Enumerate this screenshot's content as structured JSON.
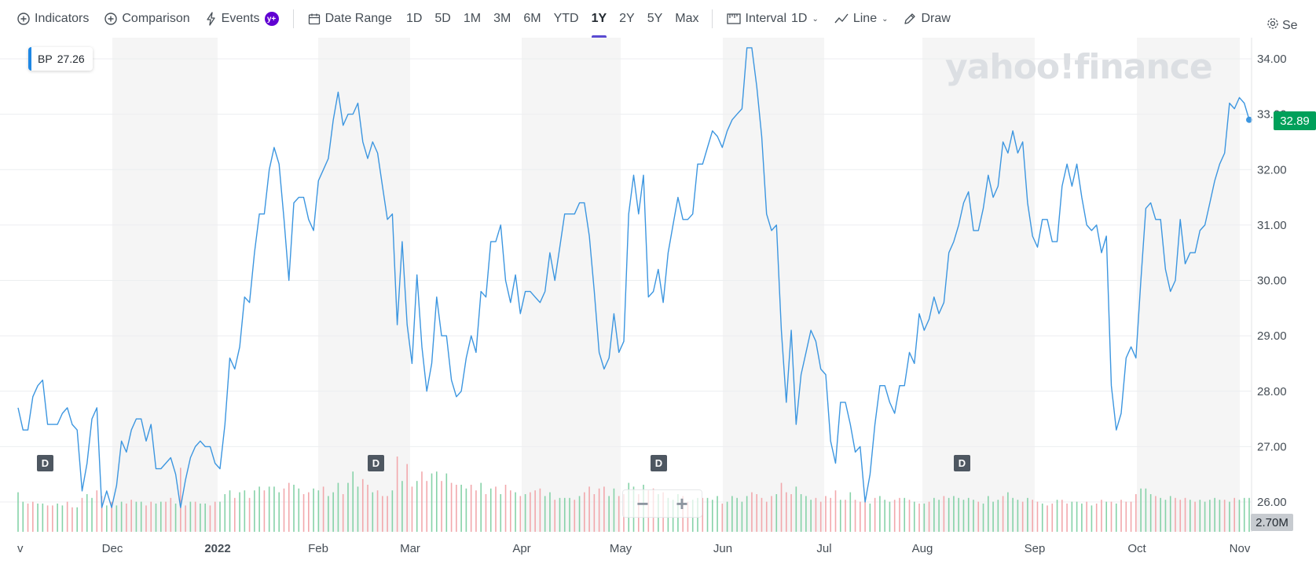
{
  "toolbar": {
    "indicators_label": "Indicators",
    "comparison_label": "Comparison",
    "events_label": "Events",
    "events_badge": "y+",
    "date_range_label": "Date Range",
    "ranges": [
      "1D",
      "5D",
      "1M",
      "3M",
      "6M",
      "YTD",
      "1Y",
      "2Y",
      "5Y",
      "Max"
    ],
    "active_range": "1Y",
    "interval_label": "Interval",
    "interval_value": "1D",
    "chart_type_label": "Line",
    "draw_label": "Draw",
    "settings_label": "Se"
  },
  "symbol_box": {
    "symbol": "BP",
    "value": "27.26"
  },
  "watermark": "yahoo!finance",
  "last_price_label": "32.89",
  "volume_label": "2.70M",
  "dividend_marker_label": "D",
  "zoom": {
    "minus": "−",
    "plus": "+"
  },
  "colors": {
    "line": "#3c96e0",
    "last_price_badge": "#00a05a",
    "vol_up": "#86d2a8",
    "vol_down": "#f2a8ac",
    "alt_band": "#f5f5f5",
    "active_tab_underline": "#5a4bd1"
  },
  "chart_data": {
    "type": "line",
    "title": "",
    "xlabel": "",
    "ylabel": "",
    "ylim": [
      25.5,
      34.3
    ],
    "y_ticks": [
      "26.00",
      "27.00",
      "28.00",
      "29.00",
      "30.00",
      "31.00",
      "32.00",
      "33.00",
      "34.00"
    ],
    "x_tick_labels": [
      "v",
      "Dec",
      "2022",
      "Feb",
      "Mar",
      "Apr",
      "May",
      "Jun",
      "Jul",
      "Aug",
      "Sep",
      "Oct",
      "Nov"
    ],
    "series": [
      {
        "values": [
          27.7,
          27.3,
          27.3,
          27.9,
          28.1,
          28.2,
          27.4,
          27.4,
          27.4,
          27.6,
          27.7,
          27.4,
          27.3,
          26.2,
          26.7,
          27.5,
          27.7,
          25.9,
          26.2,
          25.9,
          26.3,
          27.1,
          26.9,
          27.3,
          27.5,
          27.5,
          27.1,
          27.4,
          26.6,
          26.6,
          26.7,
          26.8,
          26.5,
          25.9,
          26.4,
          26.8,
          27.0,
          27.1,
          27.0,
          27.0,
          26.7,
          26.6,
          27.4,
          28.6,
          28.4,
          28.8,
          29.7,
          29.6,
          30.5,
          31.2,
          31.2,
          32.0,
          32.4,
          32.1,
          31.1,
          30.0,
          31.4,
          31.5,
          31.5,
          31.1,
          30.9,
          31.8,
          32.0,
          32.2,
          32.9,
          33.4,
          32.8,
          33.0,
          33.0,
          33.2,
          32.5,
          32.2,
          32.5,
          32.3,
          31.7,
          31.1,
          31.2,
          29.2,
          30.7,
          29.2,
          28.5,
          30.1,
          28.8,
          28.0,
          28.5,
          29.7,
          29.0,
          29.0,
          28.2,
          27.9,
          28.0,
          28.6,
          29.0,
          28.7,
          29.8,
          29.7,
          30.7,
          30.7,
          31.0,
          30.0,
          29.6,
          30.1,
          29.4,
          29.8,
          29.8,
          29.7,
          29.6,
          29.8,
          30.5,
          30.0,
          30.6,
          31.2,
          31.2,
          31.2,
          31.4,
          31.4,
          30.8,
          29.8,
          28.7,
          28.4,
          28.6,
          29.4,
          28.7,
          28.9,
          31.2,
          31.9,
          31.2,
          31.9,
          29.7,
          29.8,
          30.2,
          29.6,
          30.5,
          31.0,
          31.5,
          31.1,
          31.1,
          31.2,
          32.1,
          32.1,
          32.4,
          32.7,
          32.6,
          32.4,
          32.7,
          32.9,
          33.0,
          33.1,
          34.2,
          34.2,
          33.5,
          32.6,
          31.2,
          30.9,
          31.0,
          29.1,
          27.8,
          29.1,
          27.4,
          28.3,
          28.7,
          29.1,
          28.9,
          28.4,
          28.3,
          27.1,
          26.7,
          27.8,
          27.8,
          27.4,
          26.9,
          27.0,
          26.0,
          26.5,
          27.4,
          28.1,
          28.1,
          27.8,
          27.6,
          28.1,
          28.1,
          28.7,
          28.5,
          29.4,
          29.1,
          29.3,
          29.7,
          29.4,
          29.6,
          30.5,
          30.7,
          31.0,
          31.4,
          31.6,
          30.9,
          30.9,
          31.3,
          31.9,
          31.5,
          31.7,
          32.5,
          32.3,
          32.7,
          32.3,
          32.5,
          31.4,
          30.8,
          30.6,
          31.1,
          31.1,
          30.7,
          30.7,
          31.7,
          32.1,
          31.7,
          32.1,
          31.5,
          31.0,
          30.9,
          31.0,
          30.5,
          30.8,
          28.1,
          27.3,
          27.6,
          28.6,
          28.8,
          28.6,
          30.0,
          31.3,
          31.4,
          31.1,
          31.1,
          30.2,
          29.8,
          30.0,
          31.1,
          30.3,
          30.5,
          30.5,
          30.9,
          31.0,
          31.4,
          31.8,
          32.1,
          32.3,
          33.2,
          33.1,
          33.3,
          33.2,
          32.9
        ]
      }
    ],
    "volume": {
      "up": [
        true,
        true,
        false,
        false,
        true,
        true,
        false,
        false,
        true,
        true,
        false,
        false,
        true,
        false,
        true,
        true,
        false,
        false,
        true,
        false,
        true,
        true,
        false,
        false,
        true,
        true,
        false,
        false,
        true,
        true,
        false,
        false,
        true,
        false,
        false,
        true,
        false,
        true,
        true,
        false,
        false,
        true,
        true,
        true,
        false,
        true,
        true,
        false,
        true,
        true,
        false,
        true,
        true,
        true,
        false,
        false,
        true,
        true,
        false,
        false,
        true,
        true,
        false,
        true,
        true,
        true,
        false,
        true,
        true,
        true,
        false,
        false,
        true,
        false,
        false,
        false,
        true,
        false,
        true,
        false,
        false,
        true,
        false,
        false,
        true,
        true,
        false,
        true,
        false,
        false,
        true,
        true,
        false,
        false,
        true,
        false,
        true,
        false,
        true,
        false,
        false,
        true,
        false,
        true,
        false,
        false,
        false,
        true,
        true,
        false,
        true,
        true,
        true,
        false,
        true,
        false,
        false,
        false,
        false,
        false,
        true,
        true,
        false,
        false,
        true,
        true,
        false,
        true,
        false,
        false,
        true,
        false,
        true,
        true,
        true,
        false,
        false,
        true,
        true,
        false,
        true,
        true,
        true,
        false,
        true,
        true,
        true,
        true,
        true,
        false,
        false,
        false,
        false,
        false,
        true,
        false,
        false,
        false,
        true,
        true,
        true,
        true,
        false,
        false,
        false,
        false,
        false,
        true,
        false,
        true,
        false,
        false,
        false,
        true,
        false,
        true,
        true,
        true,
        false,
        false,
        true,
        false,
        true,
        false,
        true,
        false,
        true,
        true,
        false,
        true,
        true,
        true,
        true,
        true,
        true,
        false,
        true,
        true,
        true,
        true,
        false,
        true,
        true,
        true,
        false,
        true,
        false,
        false,
        true,
        false,
        false,
        true,
        false,
        false,
        true,
        true,
        true,
        false,
        true,
        false,
        false,
        true,
        false,
        true,
        false,
        false,
        false,
        false,
        true,
        true,
        true,
        false,
        true,
        true,
        true,
        false,
        false,
        false,
        true,
        false,
        true,
        true,
        true,
        true,
        true,
        false,
        true,
        false,
        true,
        true,
        true,
        false,
        false,
        false
      ],
      "values": [
        2.1,
        1.6,
        1.5,
        1.6,
        1.5,
        1.5,
        1.4,
        1.4,
        1.5,
        1.4,
        1.6,
        1.3,
        1.3,
        1.8,
        2.0,
        1.8,
        2.2,
        1.9,
        1.4,
        1.6,
        1.4,
        1.6,
        1.5,
        1.7,
        1.6,
        1.6,
        1.4,
        1.6,
        1.5,
        1.6,
        1.6,
        1.8,
        1.5,
        3.4,
        1.4,
        1.6,
        1.6,
        1.5,
        1.5,
        1.4,
        1.6,
        1.6,
        2.0,
        2.2,
        1.8,
        2.1,
        2.2,
        1.8,
        2.2,
        2.4,
        2.2,
        2.4,
        2.4,
        2.1,
        2.3,
        2.6,
        2.5,
        2.3,
        2.0,
        2.1,
        2.3,
        2.2,
        2.4,
        1.9,
        2.1,
        2.6,
        2.0,
        2.6,
        3.2,
        2.4,
        2.8,
        2.5,
        2.1,
        2.2,
        1.9,
        1.9,
        2.2,
        4.0,
        2.7,
        3.6,
        2.4,
        2.7,
        3.2,
        2.7,
        3.1,
        3.2,
        2.7,
        3.1,
        2.6,
        2.5,
        2.5,
        2.3,
        2.5,
        2.2,
        2.6,
        2.0,
        2.3,
        2.4,
        2.0,
        2.5,
        2.2,
        2.1,
        1.9,
        2.0,
        2.1,
        2.2,
        2.3,
        1.9,
        2.1,
        1.7,
        1.8,
        1.8,
        1.8,
        1.7,
        1.9,
        2.1,
        2.4,
        2.0,
        2.3,
        2.4,
        1.9,
        2.3,
        1.9,
        2.0,
        2.6,
        2.4,
        2.0,
        2.5,
        2.2,
        2.3,
        2.0,
        2.1,
        1.8,
        1.7,
        2.0,
        1.9,
        1.6,
        1.7,
        1.8,
        1.8,
        1.8,
        1.7,
        1.9,
        1.5,
        1.6,
        1.9,
        1.8,
        1.6,
        1.9,
        2.1,
        2.0,
        1.8,
        1.6,
        1.9,
        2.0,
        2.6,
        2.1,
        2.0,
        2.4,
        2.0,
        1.9,
        1.7,
        1.8,
        1.6,
        1.9,
        1.8,
        2.2,
        1.7,
        1.7,
        2.1,
        1.7,
        1.6,
        1.8,
        1.5,
        1.8,
        1.9,
        1.7,
        1.6,
        1.7,
        1.8,
        1.8,
        1.7,
        1.6,
        1.5,
        1.5,
        1.6,
        1.8,
        1.7,
        1.9,
        1.8,
        1.9,
        1.8,
        1.7,
        1.8,
        1.7,
        1.6,
        1.5,
        1.9,
        1.6,
        1.7,
        1.9,
        2.1,
        1.8,
        1.7,
        1.6,
        1.8,
        1.7,
        1.6,
        1.5,
        1.4,
        1.5,
        1.7,
        1.7,
        1.5,
        1.6,
        1.6,
        1.5,
        1.6,
        1.4,
        1.5,
        1.7,
        1.6,
        1.6,
        1.5,
        1.7,
        1.6,
        1.6,
        2.0,
        2.3,
        2.3,
        2.0,
        1.9,
        1.8,
        1.7,
        1.9,
        1.8,
        1.7,
        1.8,
        1.7,
        1.6,
        1.7,
        1.6,
        1.7,
        1.8,
        1.7,
        1.7,
        1.6,
        1.8,
        1.7,
        1.8,
        1.8,
        1.8,
        1.7,
        1.6,
        1.8,
        1.7,
        1.6
      ]
    }
  }
}
